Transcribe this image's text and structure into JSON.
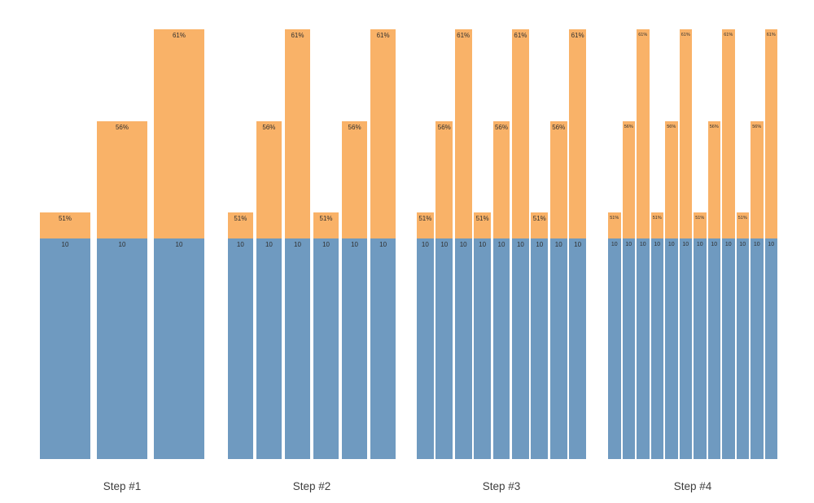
{
  "chart_data": {
    "type": "bar",
    "variant": "faceted-stacked-bars",
    "title": "",
    "xlabel": "",
    "ylabel": "",
    "grid": false,
    "axes_visible": false,
    "legend": null,
    "facets": [
      {
        "label": "Step #1",
        "bar_count": 3
      },
      {
        "label": "Step #2",
        "bar_count": 6
      },
      {
        "label": "Step #3",
        "bar_count": 9
      },
      {
        "label": "Step #4",
        "bar_count": 12
      }
    ],
    "repeating_pattern": {
      "top_segment_labels": [
        "51%",
        "56%",
        "61%"
      ],
      "top_segment_values_pct": [
        51,
        56,
        61
      ],
      "base_segment_label": "10",
      "base_segment_value": 10
    },
    "series": [
      {
        "name": "base",
        "description": "blue base segment, identical height on every bar, labeled 10"
      },
      {
        "name": "top",
        "description": "orange top segment whose height encodes 51% / 56% / 61% repeating left to right"
      }
    ],
    "colors": {
      "top_segment": "#f9b268",
      "base_segment": "#6f9ac0",
      "bar_label": "#2f2f2f",
      "facet_label": "#3d3d3d",
      "background": "#ffffff"
    }
  }
}
